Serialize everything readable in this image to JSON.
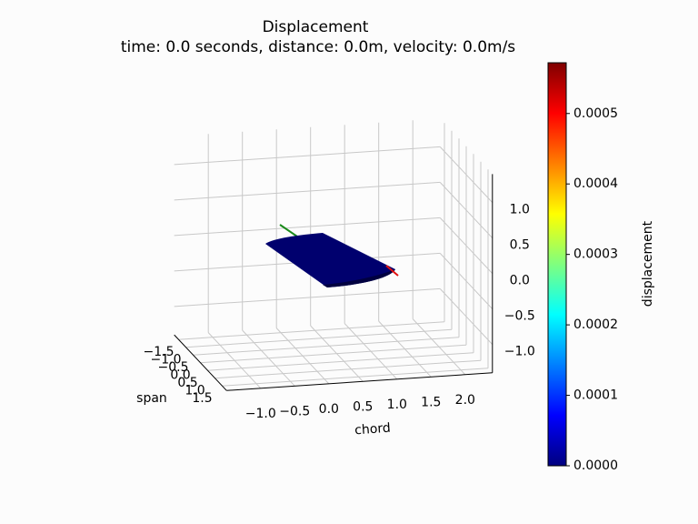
{
  "chart_data": {
    "type": "surface3d",
    "title": "Displacement",
    "subtitle": "time: 0.0 seconds, distance: 0.0m, velocity: 0.0m/s",
    "x_label": "chord",
    "y_label": "span",
    "xlim": [
      -1.5,
      2.4
    ],
    "ylim": [
      -1.8,
      1.8
    ],
    "zlim": [
      -1.4,
      1.4
    ],
    "xticks": [
      {
        "value": -1.0,
        "label": "−1.0"
      },
      {
        "value": -0.5,
        "label": "−0.5"
      },
      {
        "value": 0,
        "label": "0.0"
      },
      {
        "value": 0.5,
        "label": "0.5"
      },
      {
        "value": 1,
        "label": "1.0"
      },
      {
        "value": 1.5,
        "label": "1.5"
      },
      {
        "value": 2,
        "label": "2.0"
      }
    ],
    "yticks": [
      {
        "value": -1.5,
        "label": "−1.5"
      },
      {
        "value": -1.0,
        "label": "−1.0"
      },
      {
        "value": -0.5,
        "label": "−0.5"
      },
      {
        "value": 0,
        "label": "0.0"
      },
      {
        "value": 0.5,
        "label": "0.5"
      },
      {
        "value": 1,
        "label": "1.0"
      },
      {
        "value": 1.5,
        "label": "1.5"
      }
    ],
    "zticks": [
      {
        "value": -1.0,
        "label": "−1.0"
      },
      {
        "value": -0.5,
        "label": "−0.5"
      },
      {
        "value": 0,
        "label": "0.0"
      },
      {
        "value": 0.5,
        "label": "0.5"
      },
      {
        "value": 1,
        "label": "1.0"
      }
    ],
    "grid": true,
    "colorbar": {
      "label": "displacement",
      "colormap": "jet",
      "clim": [
        0,
        0.000572
      ],
      "ticks": [
        {
          "value": 0,
          "label": "0.0000"
        },
        {
          "value": 0.0001,
          "label": "0.0001"
        },
        {
          "value": 0.0002,
          "label": "0.0002"
        },
        {
          "value": 0.0003,
          "label": "0.0003"
        },
        {
          "value": 0.0004,
          "label": "0.0004"
        },
        {
          "value": 0.0005,
          "label": "0.0005"
        }
      ]
    }
  }
}
